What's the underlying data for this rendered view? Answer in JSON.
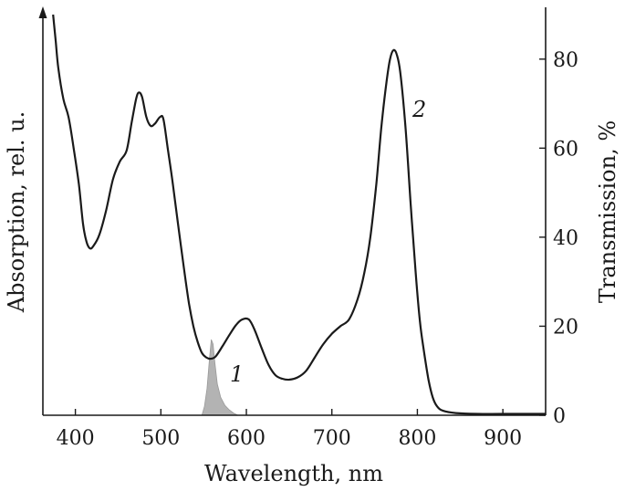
{
  "chart_data": {
    "type": "line",
    "xlabel": "Wavelength, nm",
    "ylabel_left": "Absorption, rel. u.",
    "ylabel_right": "Transmission, %",
    "xlim": [
      362,
      950
    ],
    "ylim_right": [
      0,
      90
    ],
    "x_ticks": [
      400,
      500,
      600,
      700,
      800,
      900
    ],
    "y_right_ticks": [
      0,
      20,
      40,
      60,
      80
    ],
    "grid": false,
    "series": [
      {
        "name": "1",
        "kind": "filled-peak",
        "color": "#b3b3b3",
        "points": [
          [
            548,
            0
          ],
          [
            551,
            2
          ],
          [
            554,
            6
          ],
          [
            557,
            13
          ],
          [
            559,
            17
          ],
          [
            561,
            16
          ],
          [
            563,
            12
          ],
          [
            566,
            7
          ],
          [
            570,
            4
          ],
          [
            575,
            2.2
          ],
          [
            580,
            1.2
          ],
          [
            585,
            0.5
          ],
          [
            590,
            0
          ]
        ]
      },
      {
        "name": "2",
        "kind": "line",
        "color": "#1a1a1a",
        "points": [
          [
            374,
            90
          ],
          [
            377,
            84
          ],
          [
            380,
            78
          ],
          [
            386,
            71
          ],
          [
            392,
            67
          ],
          [
            398,
            60
          ],
          [
            404,
            52
          ],
          [
            409,
            43
          ],
          [
            413,
            39
          ],
          [
            417,
            37.5
          ],
          [
            421,
            38
          ],
          [
            428,
            40.5
          ],
          [
            436,
            46
          ],
          [
            444,
            53
          ],
          [
            452,
            57
          ],
          [
            460,
            59.5
          ],
          [
            466,
            66
          ],
          [
            471,
            71
          ],
          [
            474,
            72.5
          ],
          [
            478,
            71.5
          ],
          [
            483,
            67
          ],
          [
            488,
            65
          ],
          [
            493,
            65.5
          ],
          [
            499,
            67
          ],
          [
            503,
            66.5
          ],
          [
            508,
            60
          ],
          [
            514,
            52
          ],
          [
            520,
            43
          ],
          [
            527,
            33
          ],
          [
            533,
            25
          ],
          [
            538,
            20
          ],
          [
            543,
            16.5
          ],
          [
            548,
            14
          ],
          [
            553,
            13
          ],
          [
            558,
            12.7
          ],
          [
            564,
            13.2
          ],
          [
            572,
            15.5
          ],
          [
            580,
            18
          ],
          [
            588,
            20.3
          ],
          [
            595,
            21.5
          ],
          [
            603,
            21.5
          ],
          [
            610,
            19
          ],
          [
            618,
            15
          ],
          [
            626,
            11.3
          ],
          [
            634,
            9
          ],
          [
            642,
            8.2
          ],
          [
            650,
            8
          ],
          [
            660,
            8.5
          ],
          [
            670,
            10
          ],
          [
            680,
            13
          ],
          [
            690,
            16
          ],
          [
            700,
            18.3
          ],
          [
            710,
            20
          ],
          [
            720,
            21.5
          ],
          [
            730,
            26
          ],
          [
            738,
            32
          ],
          [
            745,
            40
          ],
          [
            752,
            52
          ],
          [
            758,
            65
          ],
          [
            764,
            75
          ],
          [
            768,
            80
          ],
          [
            772,
            82
          ],
          [
            776,
            81
          ],
          [
            780,
            77
          ],
          [
            786,
            65
          ],
          [
            792,
            48
          ],
          [
            798,
            32
          ],
          [
            803,
            21
          ],
          [
            808,
            14
          ],
          [
            813,
            8
          ],
          [
            818,
            4
          ],
          [
            823,
            2
          ],
          [
            830,
            1
          ],
          [
            845,
            0.5
          ],
          [
            870,
            0.3
          ],
          [
            900,
            0.3
          ],
          [
            950,
            0.3
          ]
        ]
      }
    ]
  },
  "labels": {
    "curve1": "1",
    "curve2": "2"
  }
}
